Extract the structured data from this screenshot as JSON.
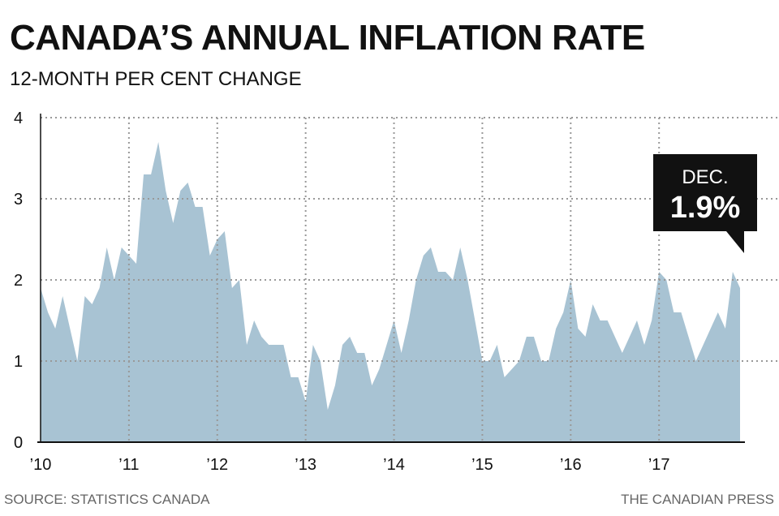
{
  "title": "CANADA’S ANNUAL INFLATION RATE",
  "subtitle": "12-MONTH PER CENT CHANGE",
  "source": "SOURCE: STATISTICS CANADA",
  "credit": "THE CANADIAN PRESS",
  "colors": {
    "area": "#a8c3d3",
    "grid": "#999999",
    "callout": "#111111"
  },
  "chart_data": {
    "type": "area",
    "title": "CANADA’S ANNUAL INFLATION RATE",
    "subtitle": "12-MONTH PER CENT CHANGE",
    "xlabel": "",
    "ylabel": "",
    "ylim": [
      0,
      4
    ],
    "yticks": [
      "0",
      "1",
      "2",
      "3",
      "4"
    ],
    "xticks": [
      "’10",
      "’11",
      "’12",
      "’13",
      "’14",
      "’15",
      "’16",
      "’17"
    ],
    "grid": true,
    "x_start": "Jan 2010",
    "x_end": "Dec 2017",
    "values": [
      1.9,
      1.6,
      1.4,
      1.8,
      1.4,
      1.0,
      1.8,
      1.7,
      1.9,
      2.4,
      2.0,
      2.4,
      2.3,
      2.2,
      3.3,
      3.3,
      3.7,
      3.1,
      2.7,
      3.1,
      3.2,
      2.9,
      2.9,
      2.3,
      2.5,
      2.6,
      1.9,
      2.0,
      1.2,
      1.5,
      1.3,
      1.2,
      1.2,
      1.2,
      0.8,
      0.8,
      0.5,
      1.2,
      1.0,
      0.4,
      0.7,
      1.2,
      1.3,
      1.1,
      1.1,
      0.7,
      0.9,
      1.2,
      1.5,
      1.1,
      1.5,
      2.0,
      2.3,
      2.4,
      2.1,
      2.1,
      2.0,
      2.4,
      2.0,
      1.5,
      1.0,
      1.0,
      1.2,
      0.8,
      0.9,
      1.0,
      1.3,
      1.3,
      1.0,
      1.0,
      1.4,
      1.6,
      2.0,
      1.4,
      1.3,
      1.7,
      1.5,
      1.5,
      1.3,
      1.1,
      1.3,
      1.5,
      1.2,
      1.5,
      2.1,
      2.0,
      1.6,
      1.6,
      1.3,
      1.0,
      1.2,
      1.4,
      1.6,
      1.4,
      2.1,
      1.9
    ],
    "annotation": {
      "label": "DEC.",
      "value": "1.9%"
    }
  }
}
